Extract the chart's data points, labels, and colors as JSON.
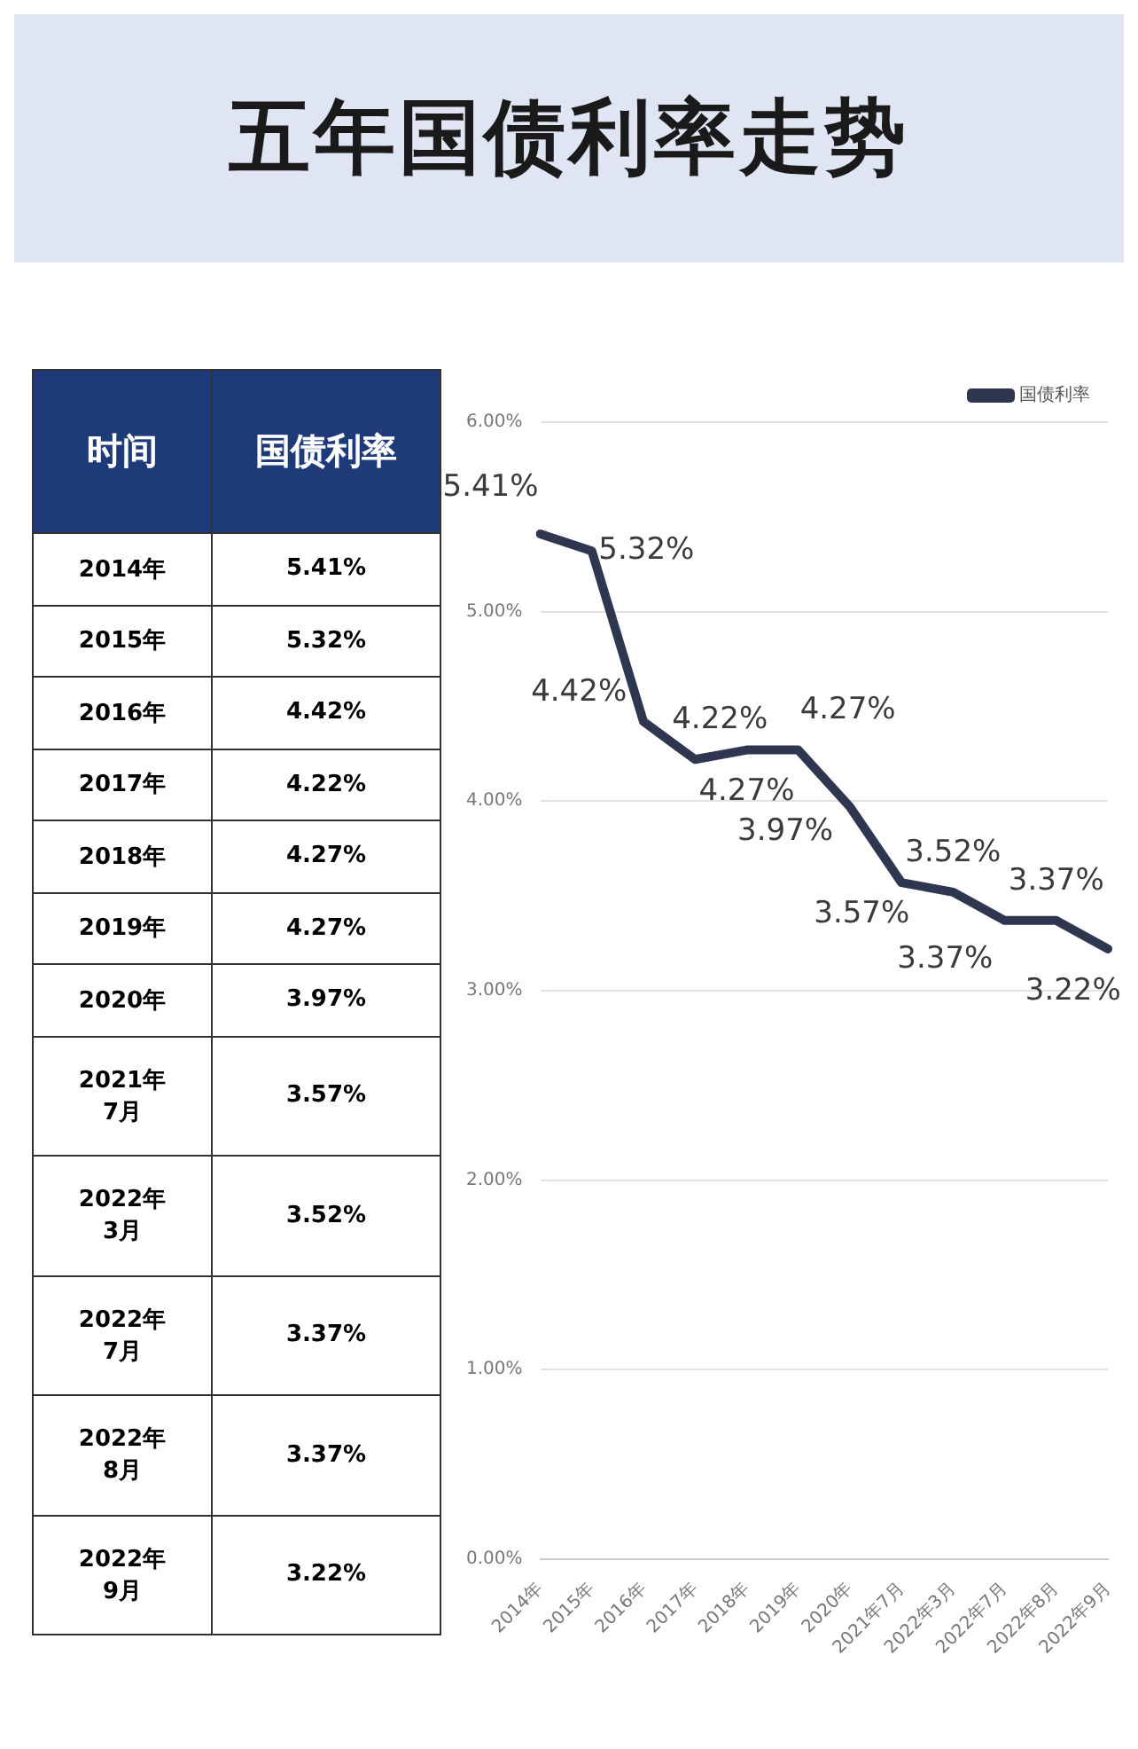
{
  "chart_data": {
    "type": "line",
    "title": "五年国债利率走势",
    "categories": [
      "2014年",
      "2015年",
      "2016年",
      "2017年",
      "2018年",
      "2019年",
      "2020年",
      "2021年7月",
      "2022年3月",
      "2022年7月",
      "2022年8月",
      "2022年9月"
    ],
    "series": [
      {
        "name": "国债利率",
        "color": "#2e3650",
        "values": [
          5.41,
          5.32,
          4.42,
          4.22,
          4.27,
          4.27,
          3.97,
          3.57,
          3.52,
          3.37,
          3.37,
          3.22
        ],
        "value_labels": [
          "5.41%",
          "5.32%",
          "4.42%",
          "4.22%",
          "4.27%",
          "4.27%",
          "3.97%",
          "3.57%",
          "3.52%",
          "3.37%",
          "3.37%",
          "3.22%"
        ]
      }
    ],
    "ylim": [
      0,
      6
    ],
    "yticks": [
      {
        "value": 0,
        "label": "0.00%"
      },
      {
        "value": 1,
        "label": "1.00%"
      },
      {
        "value": 2,
        "label": "2.00%"
      },
      {
        "value": 3,
        "label": "3.00%"
      },
      {
        "value": 4,
        "label": "4.00%"
      },
      {
        "value": 5,
        "label": "5.00%"
      },
      {
        "value": 6,
        "label": "6.00%"
      }
    ],
    "grid": "y",
    "legend": "top right",
    "marker": "none",
    "line_style": "solid",
    "annotations": [
      "时间",
      "国债利率"
    ]
  }
}
